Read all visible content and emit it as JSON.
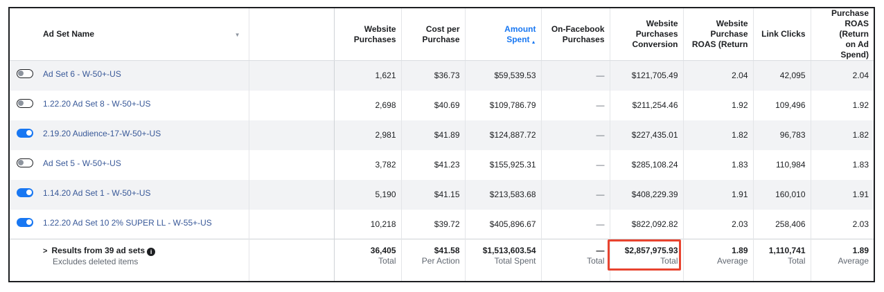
{
  "columns": {
    "ad_set_name": "Ad Set Name",
    "website_purchases": [
      "Website",
      "Purchases"
    ],
    "cost_per_purchase": [
      "Cost per",
      "Purchase"
    ],
    "amount_spent": [
      "Amount",
      "Spent"
    ],
    "on_facebook_purchases": [
      "On-Facebook",
      "Purchases"
    ],
    "website_purchases_conversion": [
      "Website",
      "Purchases",
      "Conversion"
    ],
    "website_purchase_roas": [
      "Website",
      "Purchase",
      "ROAS (Return"
    ],
    "link_clicks": "Link Clicks",
    "purchase_roas": [
      "Purchase",
      "ROAS (Return",
      "on Ad Spend)"
    ]
  },
  "icons": {
    "sort_arrow": "sort-ascending-icon",
    "name_caret": "caret-down-icon",
    "expand": "chevron-right-icon",
    "info": "info-icon"
  },
  "colors": {
    "accent": "#1877f2",
    "link": "#385898",
    "highlight": "#e8432f"
  },
  "rows": [
    {
      "on": false,
      "name": "Ad Set 6 - W-50+-US",
      "website_purchases": "1,621",
      "cost_per_purchase": "$36.73",
      "amount_spent": "$59,539.53",
      "on_facebook_purchases": "—",
      "conversion": "$121,705.49",
      "website_roas": "2.04",
      "link_clicks": "42,095",
      "purchase_roas": "2.04"
    },
    {
      "on": false,
      "name": "1.22.20 Ad Set 8 - W-50+-US",
      "website_purchases": "2,698",
      "cost_per_purchase": "$40.69",
      "amount_spent": "$109,786.79",
      "on_facebook_purchases": "—",
      "conversion": "$211,254.46",
      "website_roas": "1.92",
      "link_clicks": "109,496",
      "purchase_roas": "1.92"
    },
    {
      "on": true,
      "name": "2.19.20 Audience-17-W-50+-US",
      "website_purchases": "2,981",
      "cost_per_purchase": "$41.89",
      "amount_spent": "$124,887.72",
      "on_facebook_purchases": "—",
      "conversion": "$227,435.01",
      "website_roas": "1.82",
      "link_clicks": "96,783",
      "purchase_roas": "1.82"
    },
    {
      "on": false,
      "name": "Ad Set 5 - W-50+-US",
      "website_purchases": "3,782",
      "cost_per_purchase": "$41.23",
      "amount_spent": "$155,925.31",
      "on_facebook_purchases": "—",
      "conversion": "$285,108.24",
      "website_roas": "1.83",
      "link_clicks": "110,984",
      "purchase_roas": "1.83"
    },
    {
      "on": true,
      "name": "1.14.20 Ad Set 1 - W-50+-US",
      "website_purchases": "5,190",
      "cost_per_purchase": "$41.15",
      "amount_spent": "$213,583.68",
      "on_facebook_purchases": "—",
      "conversion": "$408,229.39",
      "website_roas": "1.91",
      "link_clicks": "160,010",
      "purchase_roas": "1.91"
    },
    {
      "on": true,
      "name": "1.22.20 Ad Set 10 2% SUPER LL - W-55+-US",
      "website_purchases": "10,218",
      "cost_per_purchase": "$39.72",
      "amount_spent": "$405,896.67",
      "on_facebook_purchases": "—",
      "conversion": "$822,092.82",
      "website_roas": "2.03",
      "link_clicks": "258,406",
      "purchase_roas": "2.03"
    }
  ],
  "totals": {
    "results_label": "Results from 39 ad sets",
    "excludes_label": "Excludes deleted items",
    "website_purchases": {
      "value": "36,405",
      "sub": "Total"
    },
    "cost_per_purchase": {
      "value": "$41.58",
      "sub": "Per Action"
    },
    "amount_spent": {
      "value": "$1,513,603.54",
      "sub": "Total Spent"
    },
    "on_facebook_purchases": {
      "value": "—",
      "sub": "Total"
    },
    "conversion": {
      "value": "$2,857,975.93",
      "sub": "Total"
    },
    "website_roas": {
      "value": "1.89",
      "sub": "Average"
    },
    "link_clicks": {
      "value": "1,110,741",
      "sub": "Total"
    },
    "purchase_roas": {
      "value": "1.89",
      "sub": "Average"
    }
  }
}
